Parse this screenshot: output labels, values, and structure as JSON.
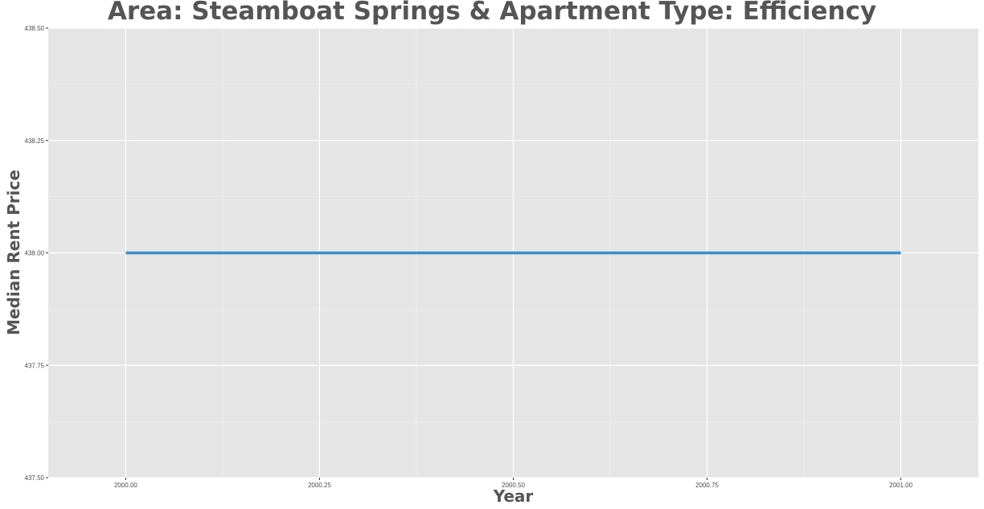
{
  "chart_data": {
    "type": "line",
    "title": "Area: Steamboat Springs & Apartment Type: Efficiency",
    "xlabel": "Year",
    "ylabel": "Median Rent Price",
    "xlim": [
      1999.9,
      2001.1
    ],
    "ylim": [
      437.5,
      438.5
    ],
    "x_ticks": [
      2000.0,
      2000.25,
      2000.5,
      2000.75,
      2001.0
    ],
    "x_tick_labels": [
      "2000.00",
      "2000.25",
      "2000.50",
      "2000.75",
      "2001.00"
    ],
    "y_ticks": [
      437.5,
      437.75,
      438.0,
      438.25,
      438.5
    ],
    "y_tick_labels": [
      "437.50",
      "437.75",
      "438.00",
      "438.25",
      "438.50"
    ],
    "grid": true,
    "series": [
      {
        "x": [
          2000.0,
          2001.0
        ],
        "y": [
          438.0,
          438.0
        ],
        "color": "#3d8ec5"
      }
    ],
    "colors": {
      "panel": "#e5e5e5",
      "grid": "#ffffff",
      "text": "#555555"
    }
  }
}
